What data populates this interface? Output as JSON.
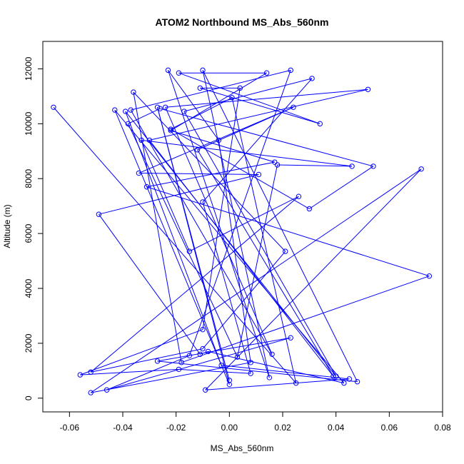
{
  "chart_data": {
    "type": "line",
    "title": "ATOM2 Northbound MS_Abs_560nm",
    "xlabel": "MS_Abs_560nm",
    "ylabel": "Altitude (m)",
    "xlim": [
      -0.07,
      0.08
    ],
    "ylim": [
      -500,
      13000
    ],
    "x_ticks": [
      -0.06,
      -0.04,
      -0.02,
      0.0,
      0.02,
      0.04,
      0.06,
      0.08
    ],
    "x_tick_labels": [
      "-0.06",
      "-0.04",
      "-0.02",
      "0.00",
      "0.02",
      "0.04",
      "0.06",
      "0.08"
    ],
    "y_ticks": [
      0,
      2000,
      4000,
      6000,
      8000,
      10000,
      12000
    ],
    "y_tick_labels": [
      "0",
      "2000",
      "4000",
      "6000",
      "8000",
      "10000",
      "12000"
    ],
    "grid": false,
    "legend": "none",
    "colors": {
      "series": "#0000ff",
      "axes": "#000000",
      "background": "#ffffff"
    },
    "series": [
      {
        "style": "line+open-circles",
        "x": [
          -0.066,
          0.025,
          0.001,
          -0.022,
          0.03,
          0.054,
          -0.026,
          -0.038,
          0.003,
          0.018,
          0.046,
          -0.033,
          -0.015,
          0.026,
          -0.052,
          -0.01,
          0.021,
          -0.036,
          -0.018,
          0.075,
          -0.031,
          0.017,
          -0.022,
          0.014,
          -0.019,
          0.034,
          -0.011,
          0.004,
          -0.01,
          -0.056,
          -0.019,
          0.008,
          -0.01,
          0.031,
          -0.017,
          0.04,
          -0.039,
          -0.003,
          0.045,
          -0.009,
          0.072,
          -0.052,
          0.008,
          -0.004,
          -0.023,
          0.015,
          -0.01,
          0.048,
          -0.027,
          0.023,
          -0.046,
          -0.015,
          0.023,
          -0.037,
          0.016,
          -0.024,
          0.052,
          -0.03,
          0.039,
          -0.012,
          0.024,
          -0.034,
          0.011,
          -0.049,
          -0.011,
          -0.008,
          0.043,
          -0.043,
          0.0,
          -0.027,
          0.0
        ],
        "y": [
          10600,
          550,
          10950,
          9800,
          6900,
          8450,
          10550,
          10000,
          1500,
          8500,
          8450,
          9400,
          5350,
          7350,
          950,
          1800,
          5350,
          11150,
          1300,
          4450,
          7700,
          8600,
          9750,
          11850,
          11850,
          10000,
          11300,
          11300,
          2500,
          850,
          1050,
          900,
          7150,
          11650,
          10450,
          800,
          10450,
          1200,
          700,
          300,
          8350,
          200,
          1300,
          9400,
          11950,
          750,
          11950,
          600,
          1350,
          2200,
          300,
          1550,
          11950,
          10500,
          1600,
          10600,
          11250,
          9400,
          800,
          9050,
          10600,
          8200,
          8150,
          6700,
          1600,
          1700,
          550,
          10500,
          500,
          10600,
          650
        ]
      }
    ]
  }
}
